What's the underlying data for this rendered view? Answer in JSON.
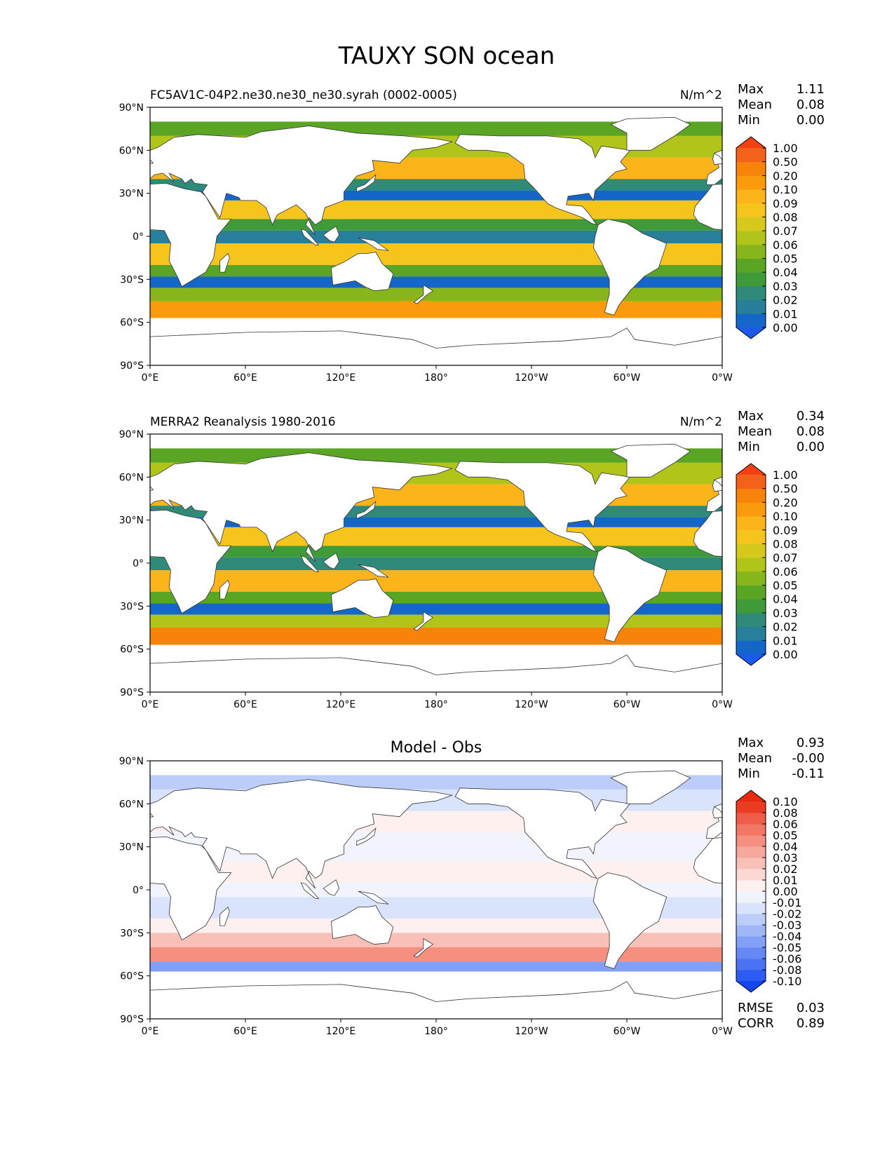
{
  "figure": {
    "title": "TAUXY SON ocean"
  },
  "chart_data": [
    {
      "type": "heatmap",
      "panel": "test",
      "title_left": "FC5AV1C-04P2.ne30.ne30_ne30.syrah (0002-0005)",
      "title_center": "",
      "units": "N/m^2",
      "stats": [
        {
          "label": "Max",
          "value": "1.11"
        },
        {
          "label": "Mean",
          "value": "0.08"
        },
        {
          "label": "Min",
          "value": "0.00"
        }
      ],
      "colorbar": {
        "levels": [
          "0.00",
          "0.01",
          "0.02",
          "0.03",
          "0.04",
          "0.05",
          "0.06",
          "0.07",
          "0.08",
          "0.09",
          "0.10",
          "0.20",
          "0.50",
          "1.00"
        ],
        "colors": [
          "#1c5aeb",
          "#1466c8",
          "#287f9b",
          "#2f8a7a",
          "#3f9a3a",
          "#5aa523",
          "#86b61c",
          "#b1c41a",
          "#d6c81c",
          "#f6c51d",
          "#fbb41a",
          "#f99b0d",
          "#f8830b",
          "#f4611a",
          "#f23f13"
        ],
        "extend": "both"
      },
      "xticks": [
        "0°E",
        "60°E",
        "120°E",
        "180°",
        "120°W",
        "60°W",
        "0°W"
      ],
      "yticks": [
        "90°N",
        "60°N",
        "30°N",
        "0°",
        "30°S",
        "60°S",
        "90°S"
      ],
      "xlim": [
        0,
        360
      ],
      "ylim": [
        -90,
        90
      ],
      "lat_bands": [
        {
          "lat": [
            70,
            80
          ],
          "level": 5
        },
        {
          "lat": [
            55,
            70
          ],
          "level": 7
        },
        {
          "lat": [
            40,
            55
          ],
          "level": 10
        },
        {
          "lat": [
            32,
            40
          ],
          "level": 3
        },
        {
          "lat": [
            25,
            32
          ],
          "level": 1
        },
        {
          "lat": [
            12,
            25
          ],
          "level": 9
        },
        {
          "lat": [
            4,
            12
          ],
          "level": 4
        },
        {
          "lat": [
            -5,
            4
          ],
          "level": 2
        },
        {
          "lat": [
            -20,
            -5
          ],
          "level": 9
        },
        {
          "lat": [
            -28,
            -20
          ],
          "level": 5
        },
        {
          "lat": [
            -36,
            -28
          ],
          "level": 1
        },
        {
          "lat": [
            -45,
            -36
          ],
          "level": 6
        },
        {
          "lat": [
            -57,
            -45
          ],
          "level": 11
        }
      ],
      "rmse": "",
      "corr": ""
    },
    {
      "type": "heatmap",
      "panel": "reference",
      "title_left": "MERRA2 Reanalysis 1980-2016",
      "title_center": "",
      "units": "N/m^2",
      "stats": [
        {
          "label": "Max",
          "value": "0.34"
        },
        {
          "label": "Mean",
          "value": "0.08"
        },
        {
          "label": "Min",
          "value": "0.00"
        }
      ],
      "colorbar": {
        "levels": [
          "0.00",
          "0.01",
          "0.02",
          "0.03",
          "0.04",
          "0.05",
          "0.06",
          "0.07",
          "0.08",
          "0.09",
          "0.10",
          "0.20",
          "0.50",
          "1.00"
        ],
        "colors": [
          "#1c5aeb",
          "#1466c8",
          "#287f9b",
          "#2f8a7a",
          "#3f9a3a",
          "#5aa523",
          "#86b61c",
          "#b1c41a",
          "#d6c81c",
          "#f6c51d",
          "#fbb41a",
          "#f99b0d",
          "#f8830b",
          "#f4611a",
          "#f23f13"
        ],
        "extend": "both"
      },
      "xticks": [
        "0°E",
        "60°E",
        "120°E",
        "180°",
        "120°W",
        "60°W",
        "0°W"
      ],
      "yticks": [
        "90°N",
        "60°N",
        "30°N",
        "0°",
        "30°S",
        "60°S",
        "90°S"
      ],
      "xlim": [
        0,
        360
      ],
      "ylim": [
        -90,
        90
      ],
      "lat_bands": [
        {
          "lat": [
            70,
            80
          ],
          "level": 5
        },
        {
          "lat": [
            55,
            70
          ],
          "level": 7
        },
        {
          "lat": [
            40,
            55
          ],
          "level": 10
        },
        {
          "lat": [
            32,
            40
          ],
          "level": 3
        },
        {
          "lat": [
            25,
            32
          ],
          "level": 1
        },
        {
          "lat": [
            12,
            25
          ],
          "level": 9
        },
        {
          "lat": [
            4,
            12
          ],
          "level": 4
        },
        {
          "lat": [
            -5,
            4
          ],
          "level": 3
        },
        {
          "lat": [
            -20,
            -5
          ],
          "level": 10
        },
        {
          "lat": [
            -28,
            -20
          ],
          "level": 5
        },
        {
          "lat": [
            -36,
            -28
          ],
          "level": 1
        },
        {
          "lat": [
            -45,
            -36
          ],
          "level": 7
        },
        {
          "lat": [
            -57,
            -45
          ],
          "level": 12
        }
      ],
      "rmse": "",
      "corr": ""
    },
    {
      "type": "heatmap",
      "panel": "difference",
      "title_left": "",
      "title_center": "Model - Obs",
      "units": "",
      "stats": [
        {
          "label": "Max",
          "value": "0.93"
        },
        {
          "label": "Mean",
          "value": "-0.00"
        },
        {
          "label": "Min",
          "value": "-0.11"
        }
      ],
      "colorbar": {
        "levels": [
          "-0.10",
          "-0.08",
          "-0.06",
          "-0.05",
          "-0.04",
          "-0.03",
          "-0.02",
          "-0.01",
          "0.00",
          "0.01",
          "0.02",
          "0.03",
          "0.04",
          "0.05",
          "0.06",
          "0.08",
          "0.10"
        ],
        "colors": [
          "#1346f0",
          "#2d5cf2",
          "#4a72f3",
          "#6688f4",
          "#82a0f5",
          "#9fb7f7",
          "#bccdf9",
          "#d9e3fb",
          "#f2f4fd",
          "#fdf0ee",
          "#fbd8d3",
          "#f9c0b8",
          "#f7a89c",
          "#f59081",
          "#f27865",
          "#ef5d48",
          "#eb3b22",
          "#e82a10"
        ],
        "extend": "both"
      },
      "xticks": [
        "0°E",
        "60°E",
        "120°E",
        "180°",
        "120°W",
        "60°W",
        "0°W"
      ],
      "yticks": [
        "90°N",
        "60°N",
        "30°N",
        "0°",
        "30°S",
        "60°S",
        "90°S"
      ],
      "xlim": [
        0,
        360
      ],
      "ylim": [
        -90,
        90
      ],
      "lat_bands": [
        {
          "lat": [
            70,
            80
          ],
          "level": 6
        },
        {
          "lat": [
            55,
            70
          ],
          "level": 7
        },
        {
          "lat": [
            40,
            55
          ],
          "level": 9
        },
        {
          "lat": [
            20,
            40
          ],
          "level": 8
        },
        {
          "lat": [
            5,
            20
          ],
          "level": 9
        },
        {
          "lat": [
            -5,
            5
          ],
          "level": 8
        },
        {
          "lat": [
            -20,
            -5
          ],
          "level": 7
        },
        {
          "lat": [
            -30,
            -20
          ],
          "level": 9
        },
        {
          "lat": [
            -40,
            -30
          ],
          "level": 11
        },
        {
          "lat": [
            -50,
            -40
          ],
          "level": 13
        },
        {
          "lat": [
            -57,
            -50
          ],
          "level": 4
        }
      ],
      "rmse": "0.03",
      "corr": "0.89"
    }
  ],
  "footer_labels": {
    "rmse": "RMSE",
    "corr": "CORR"
  },
  "colors": {
    "land": "#ffffff",
    "coast": "#333333",
    "frame": "#000000"
  }
}
